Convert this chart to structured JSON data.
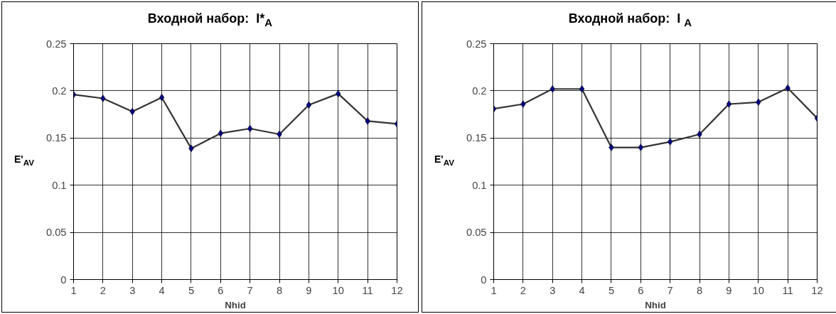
{
  "chart_data": [
    {
      "type": "line",
      "title": "Входной набор:  I*$_{A}$",
      "xlabel": "Nhid",
      "ylabel": "E'$_{AV}$",
      "x": [
        1,
        2,
        3,
        4,
        5,
        6,
        7,
        8,
        9,
        10,
        11,
        12
      ],
      "series": [
        {
          "color": "#000080",
          "values": [
            0.196,
            0.192,
            0.178,
            0.193,
            0.139,
            0.155,
            0.16,
            0.154,
            0.185,
            0.197,
            0.168,
            0.165
          ]
        }
      ],
      "xlim": [
        1,
        12
      ],
      "xticks": [
        1,
        2,
        3,
        4,
        5,
        6,
        7,
        8,
        9,
        10,
        11,
        12
      ],
      "ylim": [
        0,
        0.25
      ],
      "yticks": [
        0,
        0.05,
        0.1,
        0.15,
        0.2,
        0.25
      ],
      "grid": true,
      "marker": "diamond",
      "line_style": "solid"
    },
    {
      "type": "line",
      "title": "Входной набор:  I $_{A}$",
      "xlabel": "Nhid",
      "ylabel": "E'$_{AV}$",
      "x": [
        1,
        2,
        3,
        4,
        5,
        6,
        7,
        8,
        9,
        10,
        11,
        12
      ],
      "series": [
        {
          "color": "#000080",
          "values": [
            0.181,
            0.186,
            0.202,
            0.202,
            0.14,
            0.14,
            0.146,
            0.154,
            0.186,
            0.188,
            0.203,
            0.171
          ]
        }
      ],
      "xlim": [
        1,
        12
      ],
      "xticks": [
        1,
        2,
        3,
        4,
        5,
        6,
        7,
        8,
        9,
        10,
        11,
        12
      ],
      "ylim": [
        0,
        0.25
      ],
      "yticks": [
        0,
        0.05,
        0.1,
        0.15,
        0.2,
        0.25
      ],
      "grid": true,
      "marker": "diamond",
      "line_style": "solid"
    }
  ]
}
